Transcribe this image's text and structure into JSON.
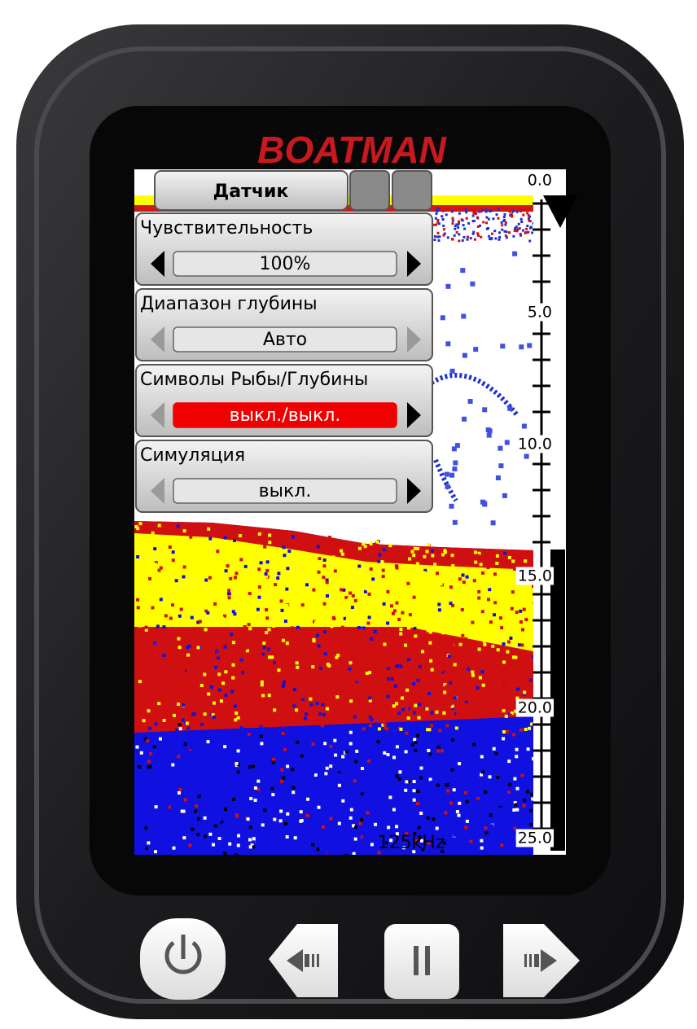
{
  "brand": "BOATMAN",
  "tab": "Датчик",
  "menu": [
    {
      "label": "Чувствительность",
      "value": "100%"
    },
    {
      "label": "Диапазон глубины",
      "value": "Авто"
    },
    {
      "label": "Символы Рыбы/Глубины",
      "value": "выкл./выкл."
    },
    {
      "label": "Симуляция",
      "value": "выкл."
    }
  ],
  "depth_scale": [
    "0.0",
    "5.0",
    "10.0",
    "15.0",
    "20.0",
    "25.0"
  ],
  "frequency": "125kHz"
}
